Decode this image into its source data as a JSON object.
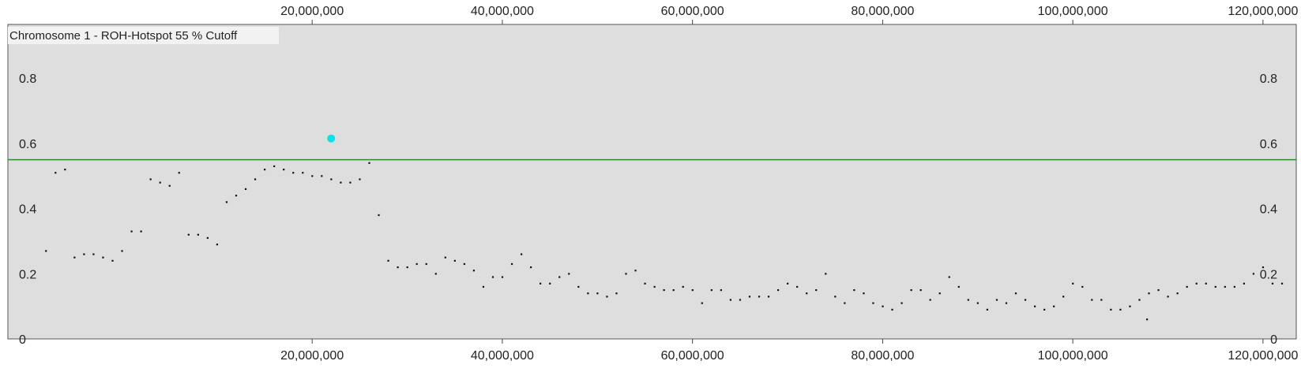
{
  "chart_data": {
    "type": "scatter",
    "title": "Chromosome 1 - ROH-Hotspot 55 % Cutoff",
    "xlim": [
      -12000000,
      123500000
    ],
    "ylim": [
      0,
      0.965
    ],
    "x_ticks": [
      20000000,
      40000000,
      60000000,
      80000000,
      100000000,
      120000000
    ],
    "x_tick_labels": [
      "20,000,000",
      "40,000,000",
      "60,000,000",
      "80,000,000",
      "100,000,000",
      "120,000,000"
    ],
    "y_ticks": [
      0,
      0.2,
      0.4,
      0.6,
      0.8
    ],
    "y_tick_labels": [
      "0",
      "0.2",
      "0.4",
      "0.6",
      "0.8"
    ],
    "grid": false,
    "cutoff": 0.55,
    "colors": {
      "background": "#dedede",
      "points": "#111111",
      "cutoff_line": "#2e8b2e",
      "hotspot": "#00e5ee"
    },
    "hotspot_points": [
      {
        "x": 22000000,
        "y": 0.615
      }
    ],
    "series": [
      {
        "x": [
          -8000000,
          -7000000,
          -6000000,
          -5000000,
          -4000000,
          -3000000,
          -2000000,
          -1000000,
          0,
          1000000,
          2000000,
          3000000,
          4000000,
          5000000,
          6000000,
          7000000,
          8000000,
          9000000,
          10000000,
          11000000,
          12000000,
          13000000,
          14000000,
          15000000,
          16000000,
          17000000,
          18000000,
          19000000,
          20000000,
          21000000,
          22000000,
          23000000,
          24000000,
          25000000,
          26000000,
          27000000,
          28000000,
          29000000,
          30000000,
          31000000,
          32000000,
          33000000,
          34000000,
          35000000,
          36000000,
          37000000,
          38000000,
          39000000,
          40000000,
          41000000,
          42000000,
          43000000,
          44000000,
          45000000,
          46000000,
          47000000,
          48000000,
          49000000,
          50000000,
          51000000,
          52000000,
          53000000,
          54000000,
          55000000,
          56000000,
          57000000,
          58000000,
          59000000,
          60000000,
          61000000,
          62000000,
          63000000,
          64000000,
          65000000,
          66000000,
          67000000,
          68000000,
          69000000,
          70000000,
          71000000,
          72000000,
          73000000,
          74000000,
          75000000,
          76000000,
          77000000,
          78000000,
          79000000,
          80000000,
          81000000,
          82000000,
          83000000,
          84000000,
          85000000,
          86000000,
          87000000,
          88000000,
          89000000,
          90000000,
          91000000,
          92000000,
          93000000,
          94000000,
          95000000,
          96000000,
          97000000,
          98000000,
          99000000,
          100000000,
          101000000,
          102000000,
          103000000,
          104000000,
          105000000,
          106000000,
          107000000,
          108000000,
          109000000,
          110000000,
          111000000,
          112000000,
          113000000,
          114000000,
          115000000,
          116000000,
          117000000,
          118000000,
          119000000,
          120000000,
          121000000,
          122000000,
          107800000
        ],
        "y": [
          0.27,
          0.51,
          0.52,
          0.25,
          0.26,
          0.26,
          0.25,
          0.24,
          0.27,
          0.33,
          0.33,
          0.49,
          0.48,
          0.47,
          0.51,
          0.32,
          0.32,
          0.31,
          0.29,
          0.42,
          0.44,
          0.46,
          0.49,
          0.52,
          0.53,
          0.52,
          0.51,
          0.51,
          0.5,
          0.5,
          0.49,
          0.48,
          0.48,
          0.49,
          0.54,
          0.38,
          0.24,
          0.22,
          0.22,
          0.23,
          0.23,
          0.2,
          0.25,
          0.24,
          0.23,
          0.21,
          0.16,
          0.19,
          0.19,
          0.23,
          0.26,
          0.22,
          0.17,
          0.17,
          0.19,
          0.2,
          0.16,
          0.14,
          0.14,
          0.13,
          0.14,
          0.2,
          0.21,
          0.17,
          0.16,
          0.15,
          0.15,
          0.16,
          0.15,
          0.11,
          0.15,
          0.15,
          0.12,
          0.12,
          0.13,
          0.13,
          0.13,
          0.15,
          0.17,
          0.16,
          0.14,
          0.15,
          0.2,
          0.13,
          0.11,
          0.15,
          0.14,
          0.11,
          0.1,
          0.09,
          0.11,
          0.15,
          0.15,
          0.12,
          0.14,
          0.19,
          0.16,
          0.12,
          0.11,
          0.09,
          0.12,
          0.11,
          0.14,
          0.12,
          0.1,
          0.09,
          0.1,
          0.13,
          0.17,
          0.16,
          0.12,
          0.12,
          0.09,
          0.09,
          0.1,
          0.12,
          0.14,
          0.15,
          0.13,
          0.14,
          0.16,
          0.17,
          0.17,
          0.16,
          0.16,
          0.16,
          0.17,
          0.2,
          0.22,
          0.17,
          0.17,
          0.06
        ]
      }
    ]
  }
}
